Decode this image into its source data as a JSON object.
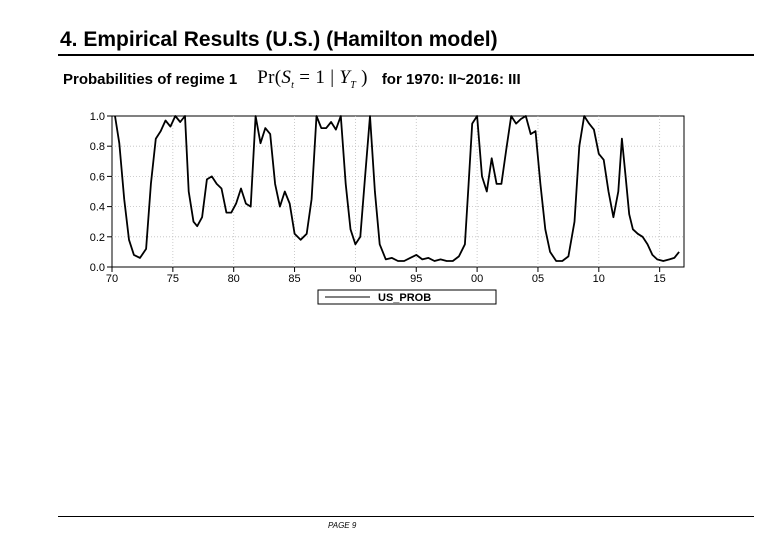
{
  "slide": {
    "title": "4. Empirical Results (U.S.) (Hamilton model)",
    "subtitle_prefix": "Probabilities of regime 1",
    "formula": {
      "pr": "Pr(",
      "s": "S",
      "s_sub": "t",
      "mid": " = 1 | ",
      "y": "Y",
      "y_sub": "T",
      "close": " )"
    },
    "subtitle_suffix": "for 1970: II~2016: III",
    "page_label": "PAGE 9"
  },
  "chart_data": {
    "type": "line",
    "title": "",
    "xlabel": "",
    "ylabel": "",
    "xlim": [
      1970.0,
      2017.0
    ],
    "ylim": [
      0.0,
      1.0
    ],
    "x_ticks": [
      1970,
      1975,
      1980,
      1985,
      1990,
      1995,
      2000,
      2005,
      2010,
      2015
    ],
    "x_tick_labels": [
      "70",
      "75",
      "80",
      "85",
      "90",
      "95",
      "00",
      "05",
      "10",
      "15"
    ],
    "y_ticks": [
      0.0,
      0.2,
      0.4,
      0.6,
      0.8,
      1.0
    ],
    "y_tick_labels": [
      "0.0",
      "0.2",
      "0.4",
      "0.6",
      "0.8",
      "1.0"
    ],
    "legend_position": "bottom-center",
    "series": [
      {
        "name": "US_PROB",
        "color": "#000000",
        "points": [
          [
            1970.25,
            1.0
          ],
          [
            1970.6,
            0.82
          ],
          [
            1971.0,
            0.45
          ],
          [
            1971.4,
            0.18
          ],
          [
            1971.8,
            0.08
          ],
          [
            1972.3,
            0.06
          ],
          [
            1972.8,
            0.12
          ],
          [
            1973.2,
            0.55
          ],
          [
            1973.6,
            0.85
          ],
          [
            1974.0,
            0.9
          ],
          [
            1974.4,
            0.97
          ],
          [
            1974.8,
            0.93
          ],
          [
            1975.2,
            1.0
          ],
          [
            1975.6,
            0.96
          ],
          [
            1976.0,
            1.0
          ],
          [
            1976.3,
            0.5
          ],
          [
            1976.7,
            0.3
          ],
          [
            1977.0,
            0.27
          ],
          [
            1977.4,
            0.33
          ],
          [
            1977.8,
            0.58
          ],
          [
            1978.2,
            0.6
          ],
          [
            1978.6,
            0.55
          ],
          [
            1979.0,
            0.52
          ],
          [
            1979.4,
            0.36
          ],
          [
            1979.8,
            0.36
          ],
          [
            1980.2,
            0.42
          ],
          [
            1980.6,
            0.52
          ],
          [
            1981.0,
            0.42
          ],
          [
            1981.4,
            0.4
          ],
          [
            1981.8,
            1.0
          ],
          [
            1982.2,
            0.82
          ],
          [
            1982.6,
            0.92
          ],
          [
            1983.0,
            0.88
          ],
          [
            1983.4,
            0.55
          ],
          [
            1983.8,
            0.4
          ],
          [
            1984.2,
            0.5
          ],
          [
            1984.6,
            0.42
          ],
          [
            1985.0,
            0.22
          ],
          [
            1985.5,
            0.18
          ],
          [
            1986.0,
            0.22
          ],
          [
            1986.4,
            0.45
          ],
          [
            1986.8,
            1.0
          ],
          [
            1987.2,
            0.92
          ],
          [
            1987.6,
            0.92
          ],
          [
            1988.0,
            0.96
          ],
          [
            1988.4,
            0.91
          ],
          [
            1988.8,
            1.0
          ],
          [
            1989.2,
            0.55
          ],
          [
            1989.6,
            0.25
          ],
          [
            1990.0,
            0.15
          ],
          [
            1990.4,
            0.2
          ],
          [
            1990.8,
            0.6
          ],
          [
            1991.2,
            1.0
          ],
          [
            1991.6,
            0.5
          ],
          [
            1992.0,
            0.15
          ],
          [
            1992.5,
            0.05
          ],
          [
            1993.0,
            0.06
          ],
          [
            1993.5,
            0.04
          ],
          [
            1994.0,
            0.04
          ],
          [
            1994.5,
            0.06
          ],
          [
            1995.0,
            0.08
          ],
          [
            1995.5,
            0.05
          ],
          [
            1996.0,
            0.06
          ],
          [
            1996.5,
            0.04
          ],
          [
            1997.0,
            0.05
          ],
          [
            1997.5,
            0.04
          ],
          [
            1998.0,
            0.04
          ],
          [
            1998.5,
            0.07
          ],
          [
            1999.0,
            0.15
          ],
          [
            1999.3,
            0.55
          ],
          [
            1999.6,
            0.95
          ],
          [
            2000.0,
            1.0
          ],
          [
            2000.4,
            0.6
          ],
          [
            2000.8,
            0.5
          ],
          [
            2001.2,
            0.72
          ],
          [
            2001.6,
            0.55
          ],
          [
            2002.0,
            0.55
          ],
          [
            2002.4,
            0.78
          ],
          [
            2002.8,
            1.0
          ],
          [
            2003.2,
            0.95
          ],
          [
            2003.6,
            0.98
          ],
          [
            2004.0,
            1.0
          ],
          [
            2004.4,
            0.88
          ],
          [
            2004.8,
            0.9
          ],
          [
            2005.2,
            0.55
          ],
          [
            2005.6,
            0.25
          ],
          [
            2006.0,
            0.1
          ],
          [
            2006.5,
            0.04
          ],
          [
            2007.0,
            0.04
          ],
          [
            2007.5,
            0.07
          ],
          [
            2008.0,
            0.3
          ],
          [
            2008.4,
            0.8
          ],
          [
            2008.8,
            1.0
          ],
          [
            2009.2,
            0.95
          ],
          [
            2009.6,
            0.91
          ],
          [
            2010.0,
            0.75
          ],
          [
            2010.4,
            0.71
          ],
          [
            2010.8,
            0.5
          ],
          [
            2011.2,
            0.33
          ],
          [
            2011.6,
            0.5
          ],
          [
            2011.9,
            0.85
          ],
          [
            2012.2,
            0.6
          ],
          [
            2012.5,
            0.35
          ],
          [
            2012.8,
            0.25
          ],
          [
            2013.2,
            0.22
          ],
          [
            2013.6,
            0.2
          ],
          [
            2014.0,
            0.15
          ],
          [
            2014.4,
            0.08
          ],
          [
            2014.8,
            0.05
          ],
          [
            2015.3,
            0.04
          ],
          [
            2015.8,
            0.05
          ],
          [
            2016.2,
            0.06
          ],
          [
            2016.6,
            0.1
          ]
        ]
      }
    ]
  }
}
